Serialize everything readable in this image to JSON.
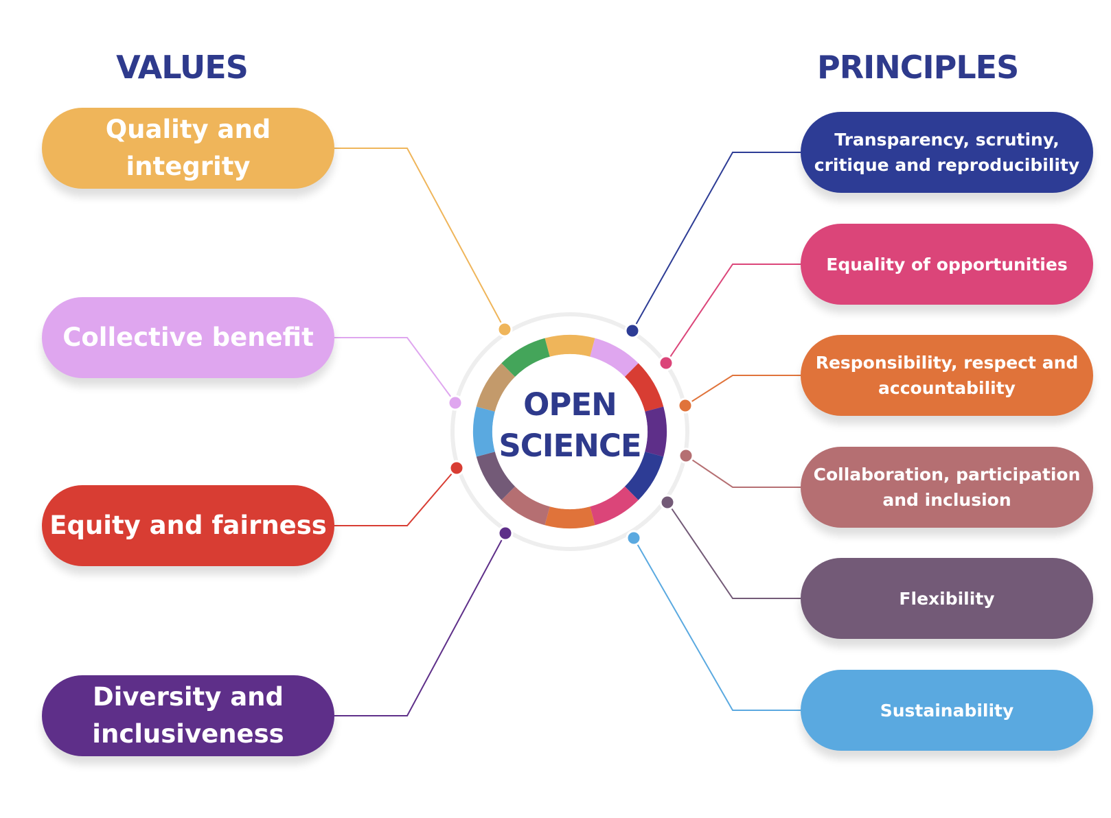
{
  "headings": {
    "values": "VALUES",
    "principles": "PRINCIPLES"
  },
  "center": {
    "line1": "OPEN",
    "line2": "SCIENCE"
  },
  "colors": {
    "heading": "#2E3A8C",
    "center_text": "#2E3A8C",
    "ring_outline": "#EEEEEE",
    "ring_segments": [
      "#EFB55A",
      "#DFA6EF",
      "#D83D33",
      "#5E2F89",
      "#2D3C95",
      "#DB4579",
      "#E0733A",
      "#B56F72",
      "#735A77",
      "#5AA9E0",
      "#C39A6B",
      "#44A55A"
    ]
  },
  "values": [
    {
      "label": "Quality and integrity",
      "color": "#EFB55A"
    },
    {
      "label": "Collective benefit",
      "color": "#DFA6EF"
    },
    {
      "label": "Equity and fairness",
      "color": "#D83D33"
    },
    {
      "label": "Diversity and inclusiveness",
      "color": "#5E2F89"
    }
  ],
  "principles": [
    {
      "label": "Transparency, scrutiny, critique and reproducibility",
      "color": "#2D3C95"
    },
    {
      "label": "Equality of opportunities",
      "color": "#DB4579"
    },
    {
      "label": "Responsibility, respect and accountability",
      "color": "#E0733A"
    },
    {
      "label": "Collaboration, participation and inclusion",
      "color": "#B56F72"
    },
    {
      "label": "Flexibility",
      "color": "#735A77"
    },
    {
      "label": "Sustainability",
      "color": "#5AA9E0"
    }
  ]
}
